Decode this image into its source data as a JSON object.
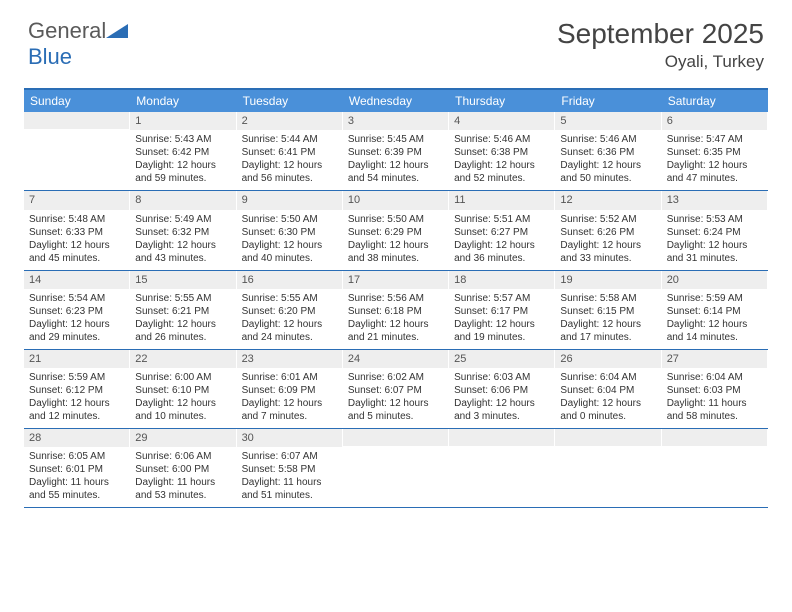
{
  "logo": {
    "text1": "General",
    "text2": "Blue"
  },
  "title": "September 2025",
  "location": "Oyali, Turkey",
  "colors": {
    "header_bar": "#4a90d9",
    "border": "#2a6db5",
    "daynum_bg": "#eeeeee",
    "text": "#333333"
  },
  "days_of_week": [
    "Sunday",
    "Monday",
    "Tuesday",
    "Wednesday",
    "Thursday",
    "Friday",
    "Saturday"
  ],
  "weeks": [
    [
      {
        "n": "",
        "l1": "",
        "l2": "",
        "l3": "",
        "l4": ""
      },
      {
        "n": "1",
        "l1": "Sunrise: 5:43 AM",
        "l2": "Sunset: 6:42 PM",
        "l3": "Daylight: 12 hours",
        "l4": "and 59 minutes."
      },
      {
        "n": "2",
        "l1": "Sunrise: 5:44 AM",
        "l2": "Sunset: 6:41 PM",
        "l3": "Daylight: 12 hours",
        "l4": "and 56 minutes."
      },
      {
        "n": "3",
        "l1": "Sunrise: 5:45 AM",
        "l2": "Sunset: 6:39 PM",
        "l3": "Daylight: 12 hours",
        "l4": "and 54 minutes."
      },
      {
        "n": "4",
        "l1": "Sunrise: 5:46 AM",
        "l2": "Sunset: 6:38 PM",
        "l3": "Daylight: 12 hours",
        "l4": "and 52 minutes."
      },
      {
        "n": "5",
        "l1": "Sunrise: 5:46 AM",
        "l2": "Sunset: 6:36 PM",
        "l3": "Daylight: 12 hours",
        "l4": "and 50 minutes."
      },
      {
        "n": "6",
        "l1": "Sunrise: 5:47 AM",
        "l2": "Sunset: 6:35 PM",
        "l3": "Daylight: 12 hours",
        "l4": "and 47 minutes."
      }
    ],
    [
      {
        "n": "7",
        "l1": "Sunrise: 5:48 AM",
        "l2": "Sunset: 6:33 PM",
        "l3": "Daylight: 12 hours",
        "l4": "and 45 minutes."
      },
      {
        "n": "8",
        "l1": "Sunrise: 5:49 AM",
        "l2": "Sunset: 6:32 PM",
        "l3": "Daylight: 12 hours",
        "l4": "and 43 minutes."
      },
      {
        "n": "9",
        "l1": "Sunrise: 5:50 AM",
        "l2": "Sunset: 6:30 PM",
        "l3": "Daylight: 12 hours",
        "l4": "and 40 minutes."
      },
      {
        "n": "10",
        "l1": "Sunrise: 5:50 AM",
        "l2": "Sunset: 6:29 PM",
        "l3": "Daylight: 12 hours",
        "l4": "and 38 minutes."
      },
      {
        "n": "11",
        "l1": "Sunrise: 5:51 AM",
        "l2": "Sunset: 6:27 PM",
        "l3": "Daylight: 12 hours",
        "l4": "and 36 minutes."
      },
      {
        "n": "12",
        "l1": "Sunrise: 5:52 AM",
        "l2": "Sunset: 6:26 PM",
        "l3": "Daylight: 12 hours",
        "l4": "and 33 minutes."
      },
      {
        "n": "13",
        "l1": "Sunrise: 5:53 AM",
        "l2": "Sunset: 6:24 PM",
        "l3": "Daylight: 12 hours",
        "l4": "and 31 minutes."
      }
    ],
    [
      {
        "n": "14",
        "l1": "Sunrise: 5:54 AM",
        "l2": "Sunset: 6:23 PM",
        "l3": "Daylight: 12 hours",
        "l4": "and 29 minutes."
      },
      {
        "n": "15",
        "l1": "Sunrise: 5:55 AM",
        "l2": "Sunset: 6:21 PM",
        "l3": "Daylight: 12 hours",
        "l4": "and 26 minutes."
      },
      {
        "n": "16",
        "l1": "Sunrise: 5:55 AM",
        "l2": "Sunset: 6:20 PM",
        "l3": "Daylight: 12 hours",
        "l4": "and 24 minutes."
      },
      {
        "n": "17",
        "l1": "Sunrise: 5:56 AM",
        "l2": "Sunset: 6:18 PM",
        "l3": "Daylight: 12 hours",
        "l4": "and 21 minutes."
      },
      {
        "n": "18",
        "l1": "Sunrise: 5:57 AM",
        "l2": "Sunset: 6:17 PM",
        "l3": "Daylight: 12 hours",
        "l4": "and 19 minutes."
      },
      {
        "n": "19",
        "l1": "Sunrise: 5:58 AM",
        "l2": "Sunset: 6:15 PM",
        "l3": "Daylight: 12 hours",
        "l4": "and 17 minutes."
      },
      {
        "n": "20",
        "l1": "Sunrise: 5:59 AM",
        "l2": "Sunset: 6:14 PM",
        "l3": "Daylight: 12 hours",
        "l4": "and 14 minutes."
      }
    ],
    [
      {
        "n": "21",
        "l1": "Sunrise: 5:59 AM",
        "l2": "Sunset: 6:12 PM",
        "l3": "Daylight: 12 hours",
        "l4": "and 12 minutes."
      },
      {
        "n": "22",
        "l1": "Sunrise: 6:00 AM",
        "l2": "Sunset: 6:10 PM",
        "l3": "Daylight: 12 hours",
        "l4": "and 10 minutes."
      },
      {
        "n": "23",
        "l1": "Sunrise: 6:01 AM",
        "l2": "Sunset: 6:09 PM",
        "l3": "Daylight: 12 hours",
        "l4": "and 7 minutes."
      },
      {
        "n": "24",
        "l1": "Sunrise: 6:02 AM",
        "l2": "Sunset: 6:07 PM",
        "l3": "Daylight: 12 hours",
        "l4": "and 5 minutes."
      },
      {
        "n": "25",
        "l1": "Sunrise: 6:03 AM",
        "l2": "Sunset: 6:06 PM",
        "l3": "Daylight: 12 hours",
        "l4": "and 3 minutes."
      },
      {
        "n": "26",
        "l1": "Sunrise: 6:04 AM",
        "l2": "Sunset: 6:04 PM",
        "l3": "Daylight: 12 hours",
        "l4": "and 0 minutes."
      },
      {
        "n": "27",
        "l1": "Sunrise: 6:04 AM",
        "l2": "Sunset: 6:03 PM",
        "l3": "Daylight: 11 hours",
        "l4": "and 58 minutes."
      }
    ],
    [
      {
        "n": "28",
        "l1": "Sunrise: 6:05 AM",
        "l2": "Sunset: 6:01 PM",
        "l3": "Daylight: 11 hours",
        "l4": "and 55 minutes."
      },
      {
        "n": "29",
        "l1": "Sunrise: 6:06 AM",
        "l2": "Sunset: 6:00 PM",
        "l3": "Daylight: 11 hours",
        "l4": "and 53 minutes."
      },
      {
        "n": "30",
        "l1": "Sunrise: 6:07 AM",
        "l2": "Sunset: 5:58 PM",
        "l3": "Daylight: 11 hours",
        "l4": "and 51 minutes."
      },
      {
        "n": "",
        "l1": "",
        "l2": "",
        "l3": "",
        "l4": ""
      },
      {
        "n": "",
        "l1": "",
        "l2": "",
        "l3": "",
        "l4": ""
      },
      {
        "n": "",
        "l1": "",
        "l2": "",
        "l3": "",
        "l4": ""
      },
      {
        "n": "",
        "l1": "",
        "l2": "",
        "l3": "",
        "l4": ""
      }
    ]
  ]
}
